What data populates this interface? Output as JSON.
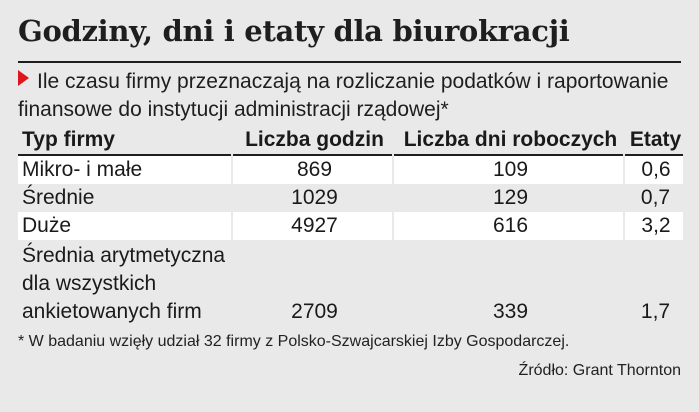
{
  "title": "Godziny, dni i etaty dla biurokracji",
  "subtitle": "Ile czasu firmy przeznaczają na rozliczanie podatków i raportowanie finansowe do instytucji administracji rządowej*",
  "footnote": "* W badaniu wzięły udział 32 firmy z Polsko-Szwajcarskiej Izby Gospodarczej.",
  "source": "Źródło: Grant Thornton",
  "chart_data": {
    "type": "table",
    "columns": [
      "Typ firmy",
      "Liczba godzin",
      "Liczba dni roboczych",
      "Etaty"
    ],
    "rows": [
      [
        "Mikro- i małe",
        "869",
        "109",
        "0,6"
      ],
      [
        "Średnie",
        "1029",
        "129",
        "0,7"
      ],
      [
        "Duże",
        "4927",
        "616",
        "3,2"
      ],
      [
        "Średnia arytmetyczna dla wszystkich ankietowanych firm",
        "2709",
        "339",
        "1,7"
      ]
    ]
  },
  "avg_label_lines": [
    "Średnia arytmetyczna",
    "dla wszystkich",
    "ankietowanych firm"
  ],
  "colors": {
    "background": "#e9e9e9",
    "row_highlight": "#ffffff",
    "marker": "#e0161d"
  }
}
